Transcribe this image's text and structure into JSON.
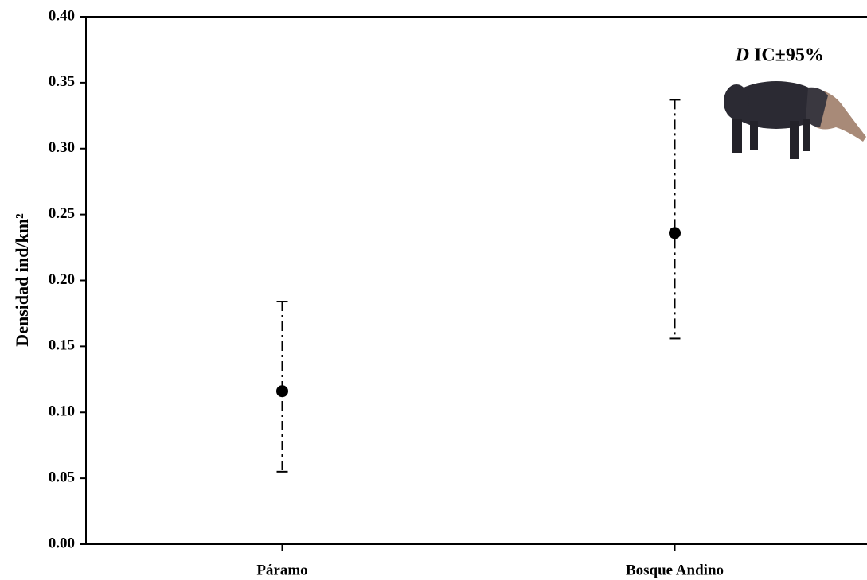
{
  "chart_data": {
    "type": "errorbar",
    "y_label": "Densidad ind/km²",
    "annotation_symbol": "D",
    "annotation": "IC±95%",
    "categories": [
      "Páramo",
      "Bosque Andino"
    ],
    "series": [
      {
        "color": "#000000",
        "values": [
          0.116,
          0.236
        ],
        "lower": [
          0.055,
          0.156
        ],
        "upper": [
          0.184,
          0.337
        ]
      }
    ],
    "ylim": [
      0,
      0.4
    ],
    "yticks": [
      {
        "value": 0,
        "label": "0.00"
      },
      0.05,
      {
        "value": 0.1,
        "label": "0.10"
      },
      0.15,
      {
        "value": 0.2,
        "label": "0.20"
      },
      0.25,
      {
        "value": 0.3,
        "label": "0.30"
      },
      0.35,
      {
        "value": 0.4,
        "label": "0.40"
      }
    ]
  }
}
